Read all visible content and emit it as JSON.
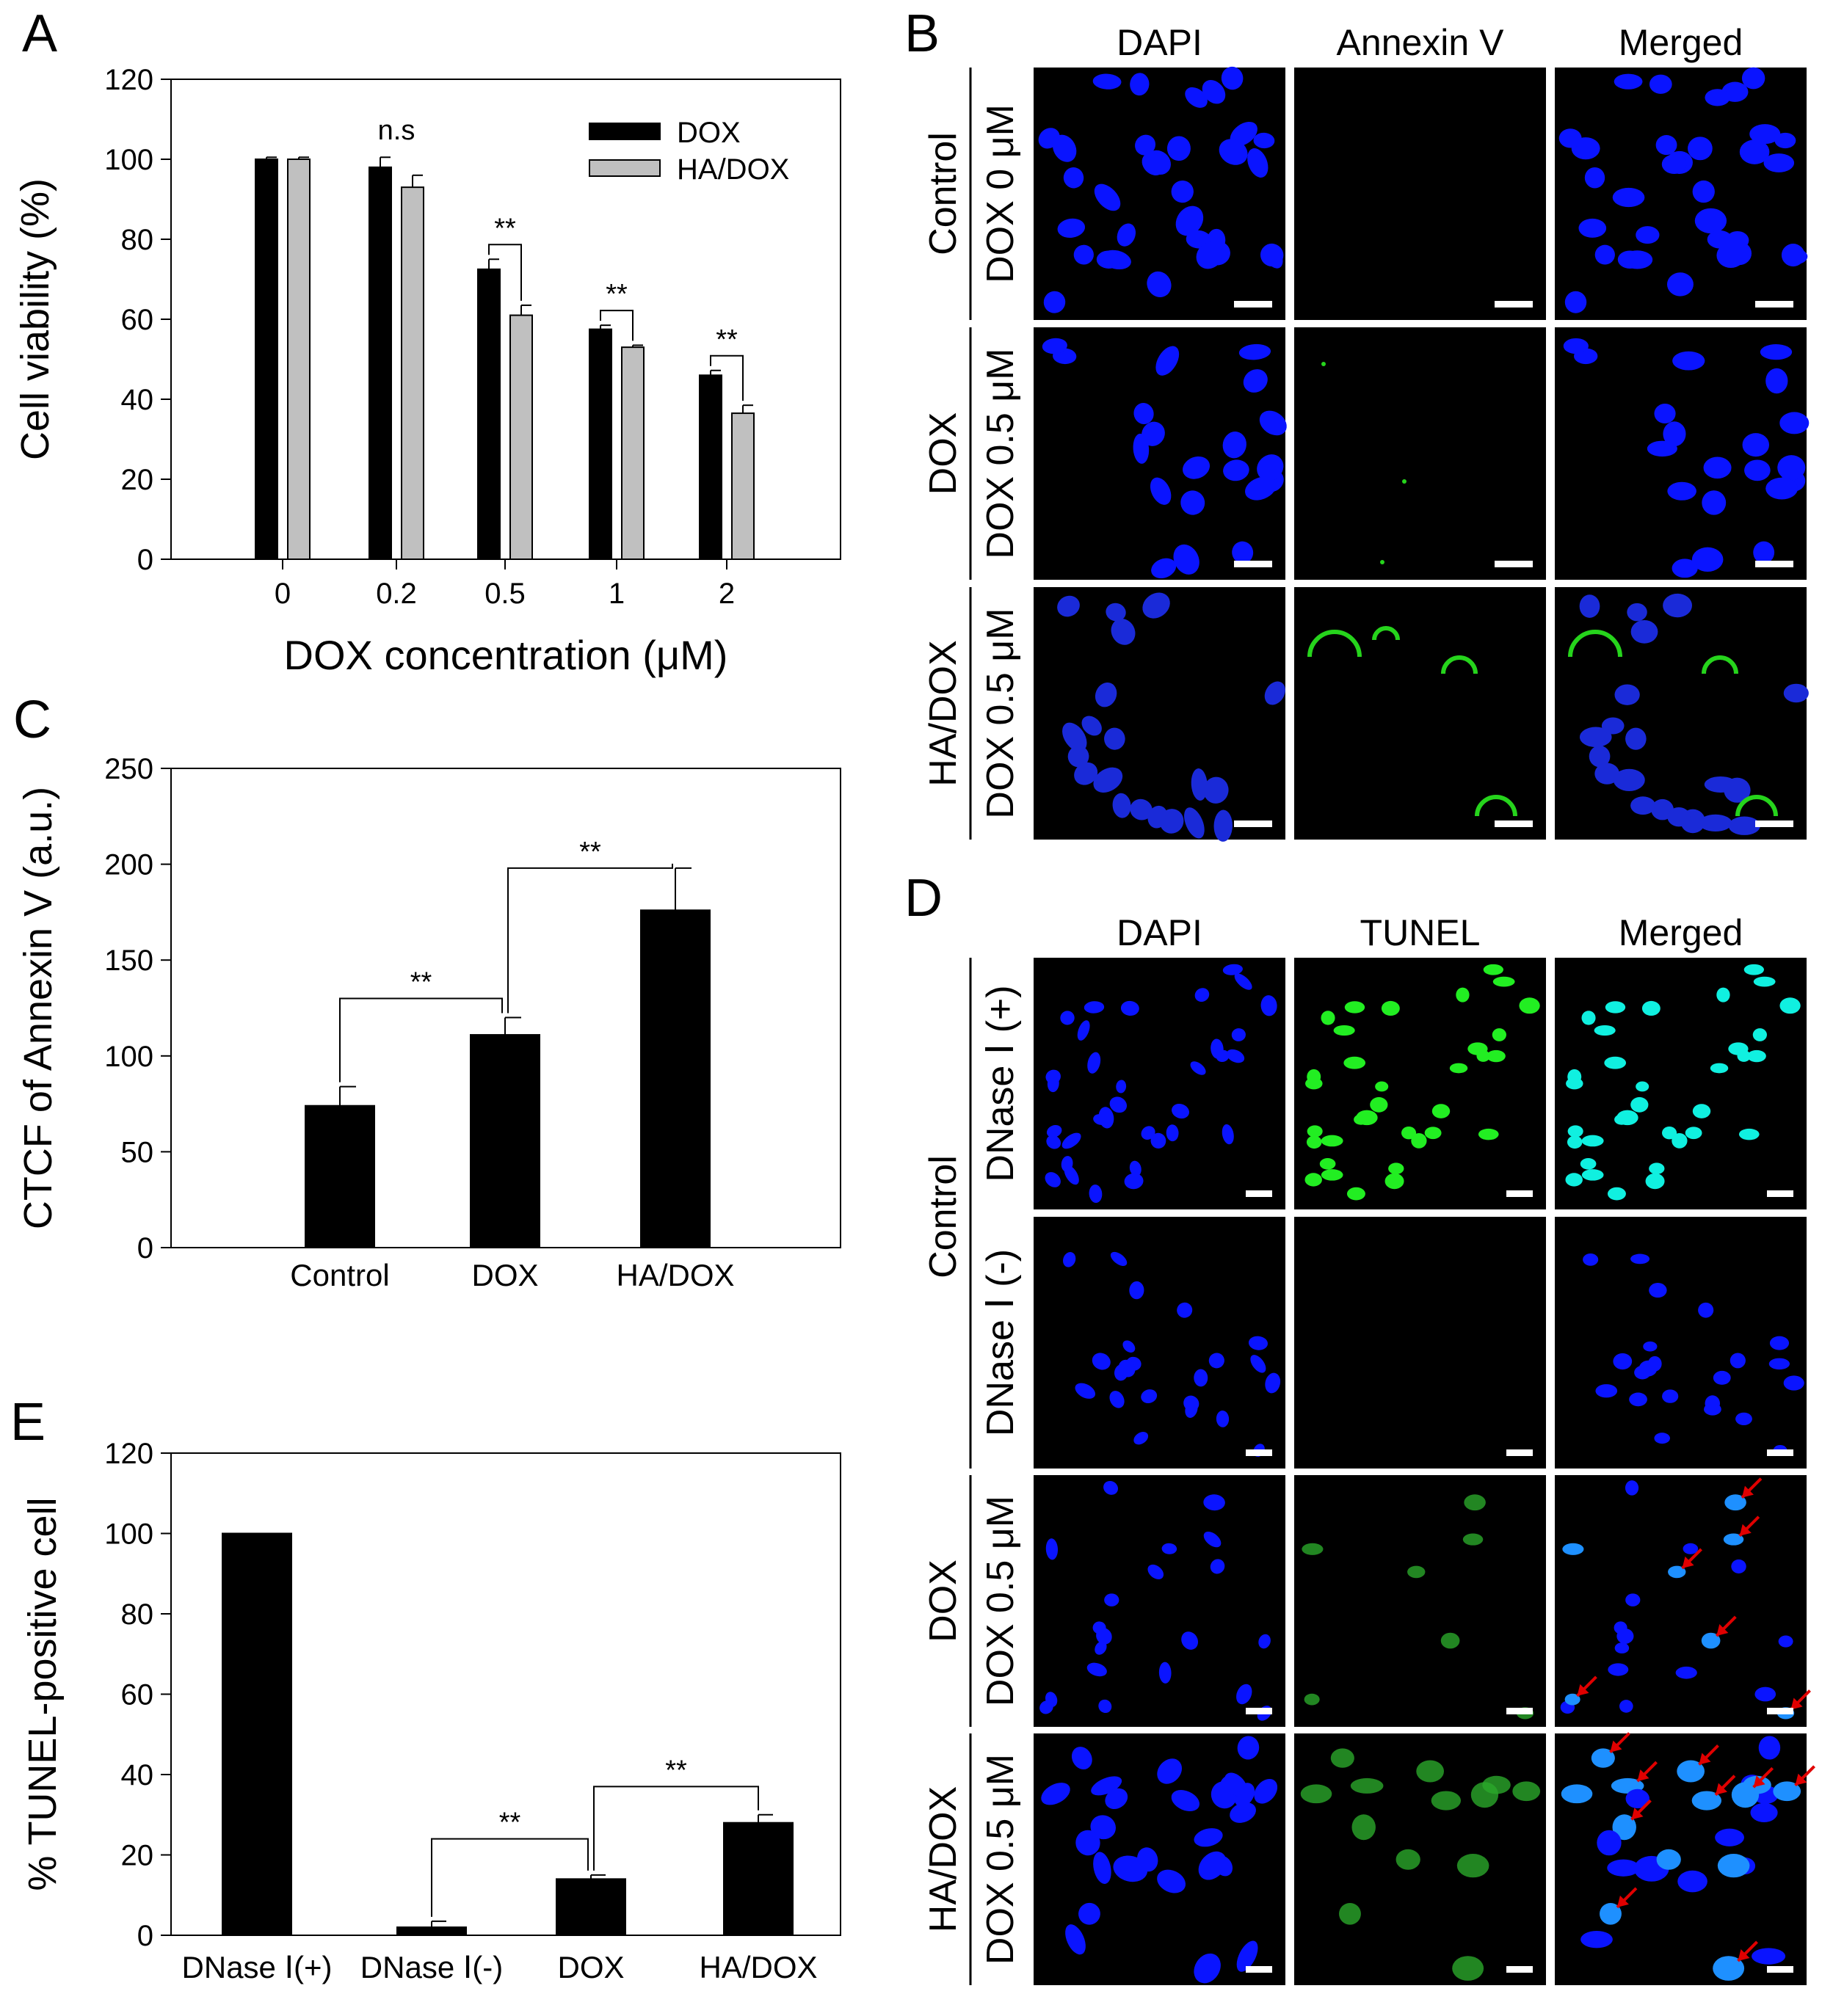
{
  "panel_labels": {
    "a": "A",
    "b": "B",
    "c": "C",
    "d": "D",
    "e": "E"
  },
  "chart_data": [
    {
      "id": "A",
      "type": "bar",
      "categories": [
        "0",
        "0.2",
        "0.5",
        "1",
        "2"
      ],
      "series": [
        {
          "name": "DOX",
          "color": "#000000",
          "values": [
            100,
            98,
            72.5,
            57.5,
            46
          ],
          "errors": [
            0.5,
            2.5,
            2.5,
            1,
            1.2
          ]
        },
        {
          "name": "HA/DOX",
          "color": "#c0c0c0",
          "values": [
            100,
            93,
            61,
            53,
            36.5
          ],
          "errors": [
            0.5,
            3,
            2.5,
            0.5,
            2
          ]
        }
      ],
      "xlabel": "DOX concentration (μM)",
      "ylabel": "Cell viability (%)",
      "ylim": [
        0,
        120
      ],
      "yticks": [
        "0",
        "20",
        "40",
        "60",
        "80",
        "100",
        "120"
      ],
      "annotations": [
        "n.s",
        "**",
        "**",
        "**"
      ],
      "legend": "top-right"
    },
    {
      "id": "C",
      "type": "bar",
      "categories": [
        "Control",
        "DOX",
        "HA/DOX"
      ],
      "values": [
        74,
        111,
        176
      ],
      "errors": [
        10,
        9,
        22
      ],
      "xlabel": "",
      "ylabel": "CTCF of Annexin V (a.u.)",
      "ylim": [
        0,
        250
      ],
      "yticks": [
        "0",
        "50",
        "100",
        "150",
        "200",
        "250"
      ],
      "annotations": [
        "**",
        "**"
      ]
    },
    {
      "id": "E",
      "type": "bar",
      "categories": [
        "DNase Ⅰ(+)",
        "DNase Ⅰ(-)",
        "DOX",
        "HA/DOX"
      ],
      "values": [
        100,
        2,
        14,
        28
      ],
      "errors": [
        0,
        1.5,
        1,
        2
      ],
      "xlabel": "",
      "ylabel": "% TUNEL-positive cell",
      "ylim": [
        0,
        120
      ],
      "yticks": [
        "0",
        "20",
        "40",
        "60",
        "80",
        "100",
        "120"
      ],
      "annotations": [
        "**",
        "**"
      ]
    }
  ],
  "panel_b": {
    "columns": [
      "DAPI",
      "Annexin V",
      "Merged"
    ],
    "rows": [
      {
        "group": "Control",
        "condition": "DOX 0 μM"
      },
      {
        "group": "DOX",
        "condition": "DOX 0.5 μM"
      },
      {
        "group": "HA/DOX",
        "condition": "DOX 0.5 μM"
      }
    ]
  },
  "panel_d": {
    "columns": [
      "DAPI",
      "TUNEL",
      "Merged"
    ],
    "control_group": "Control",
    "rows": [
      {
        "condition": "DNase Ⅰ (+)"
      },
      {
        "condition": "DNase Ⅰ (-)"
      },
      {
        "group": "DOX",
        "condition": "DOX 0.5 μM"
      },
      {
        "group": "HA/DOX",
        "condition": "DOX 0.5 μM"
      }
    ]
  },
  "colors": {
    "dapi": "#0a14ff",
    "annexin": "#26d41c",
    "tunel": "#22ee22",
    "merged_cyan": "#10f0e0",
    "merged_lightblue": "#1e90ff",
    "arrow": "#e00000"
  }
}
